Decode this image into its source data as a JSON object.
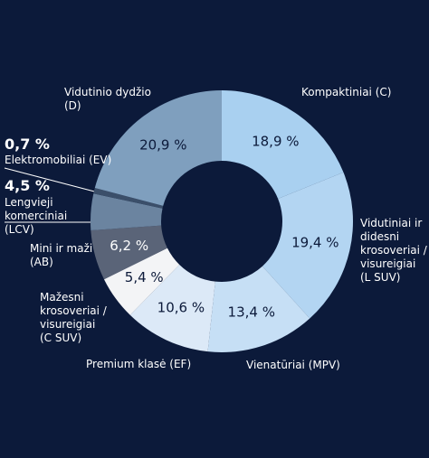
{
  "chart_data": {
    "type": "donut",
    "categories": [
      "Kompaktiniai (C)",
      "Vidutiniai ir didesni krosoveriai / visureigiai (L SUV)",
      "Vienatūriai (MPV)",
      "Premium klasė (EF)",
      "Mažesni krosoveriai / visureigiai (C SUV)",
      "Mini ir maži (AB)",
      "Lengvieji komerciniai (LCV)",
      "Elektromobiliai (EV)",
      "Vidutinio dydžio (D)"
    ],
    "values": [
      18.9,
      19.4,
      13.4,
      10.6,
      5.4,
      6.2,
      4.5,
      0.7,
      20.9
    ],
    "value_labels": [
      "18,9 %",
      "19,4 %",
      "13,4 %",
      "10,6 %",
      "5,4 %",
      "6,2 %",
      "4,5 %",
      "0,7 %",
      "20,9 %"
    ],
    "colors": [
      "#a9d0f0",
      "#b3d5f2",
      "#c6dff5",
      "#dce9f7",
      "#f3f4f6",
      "#5a6478",
      "#6b84a0",
      "#3b4f6a",
      "#7f9fbe"
    ]
  }
}
